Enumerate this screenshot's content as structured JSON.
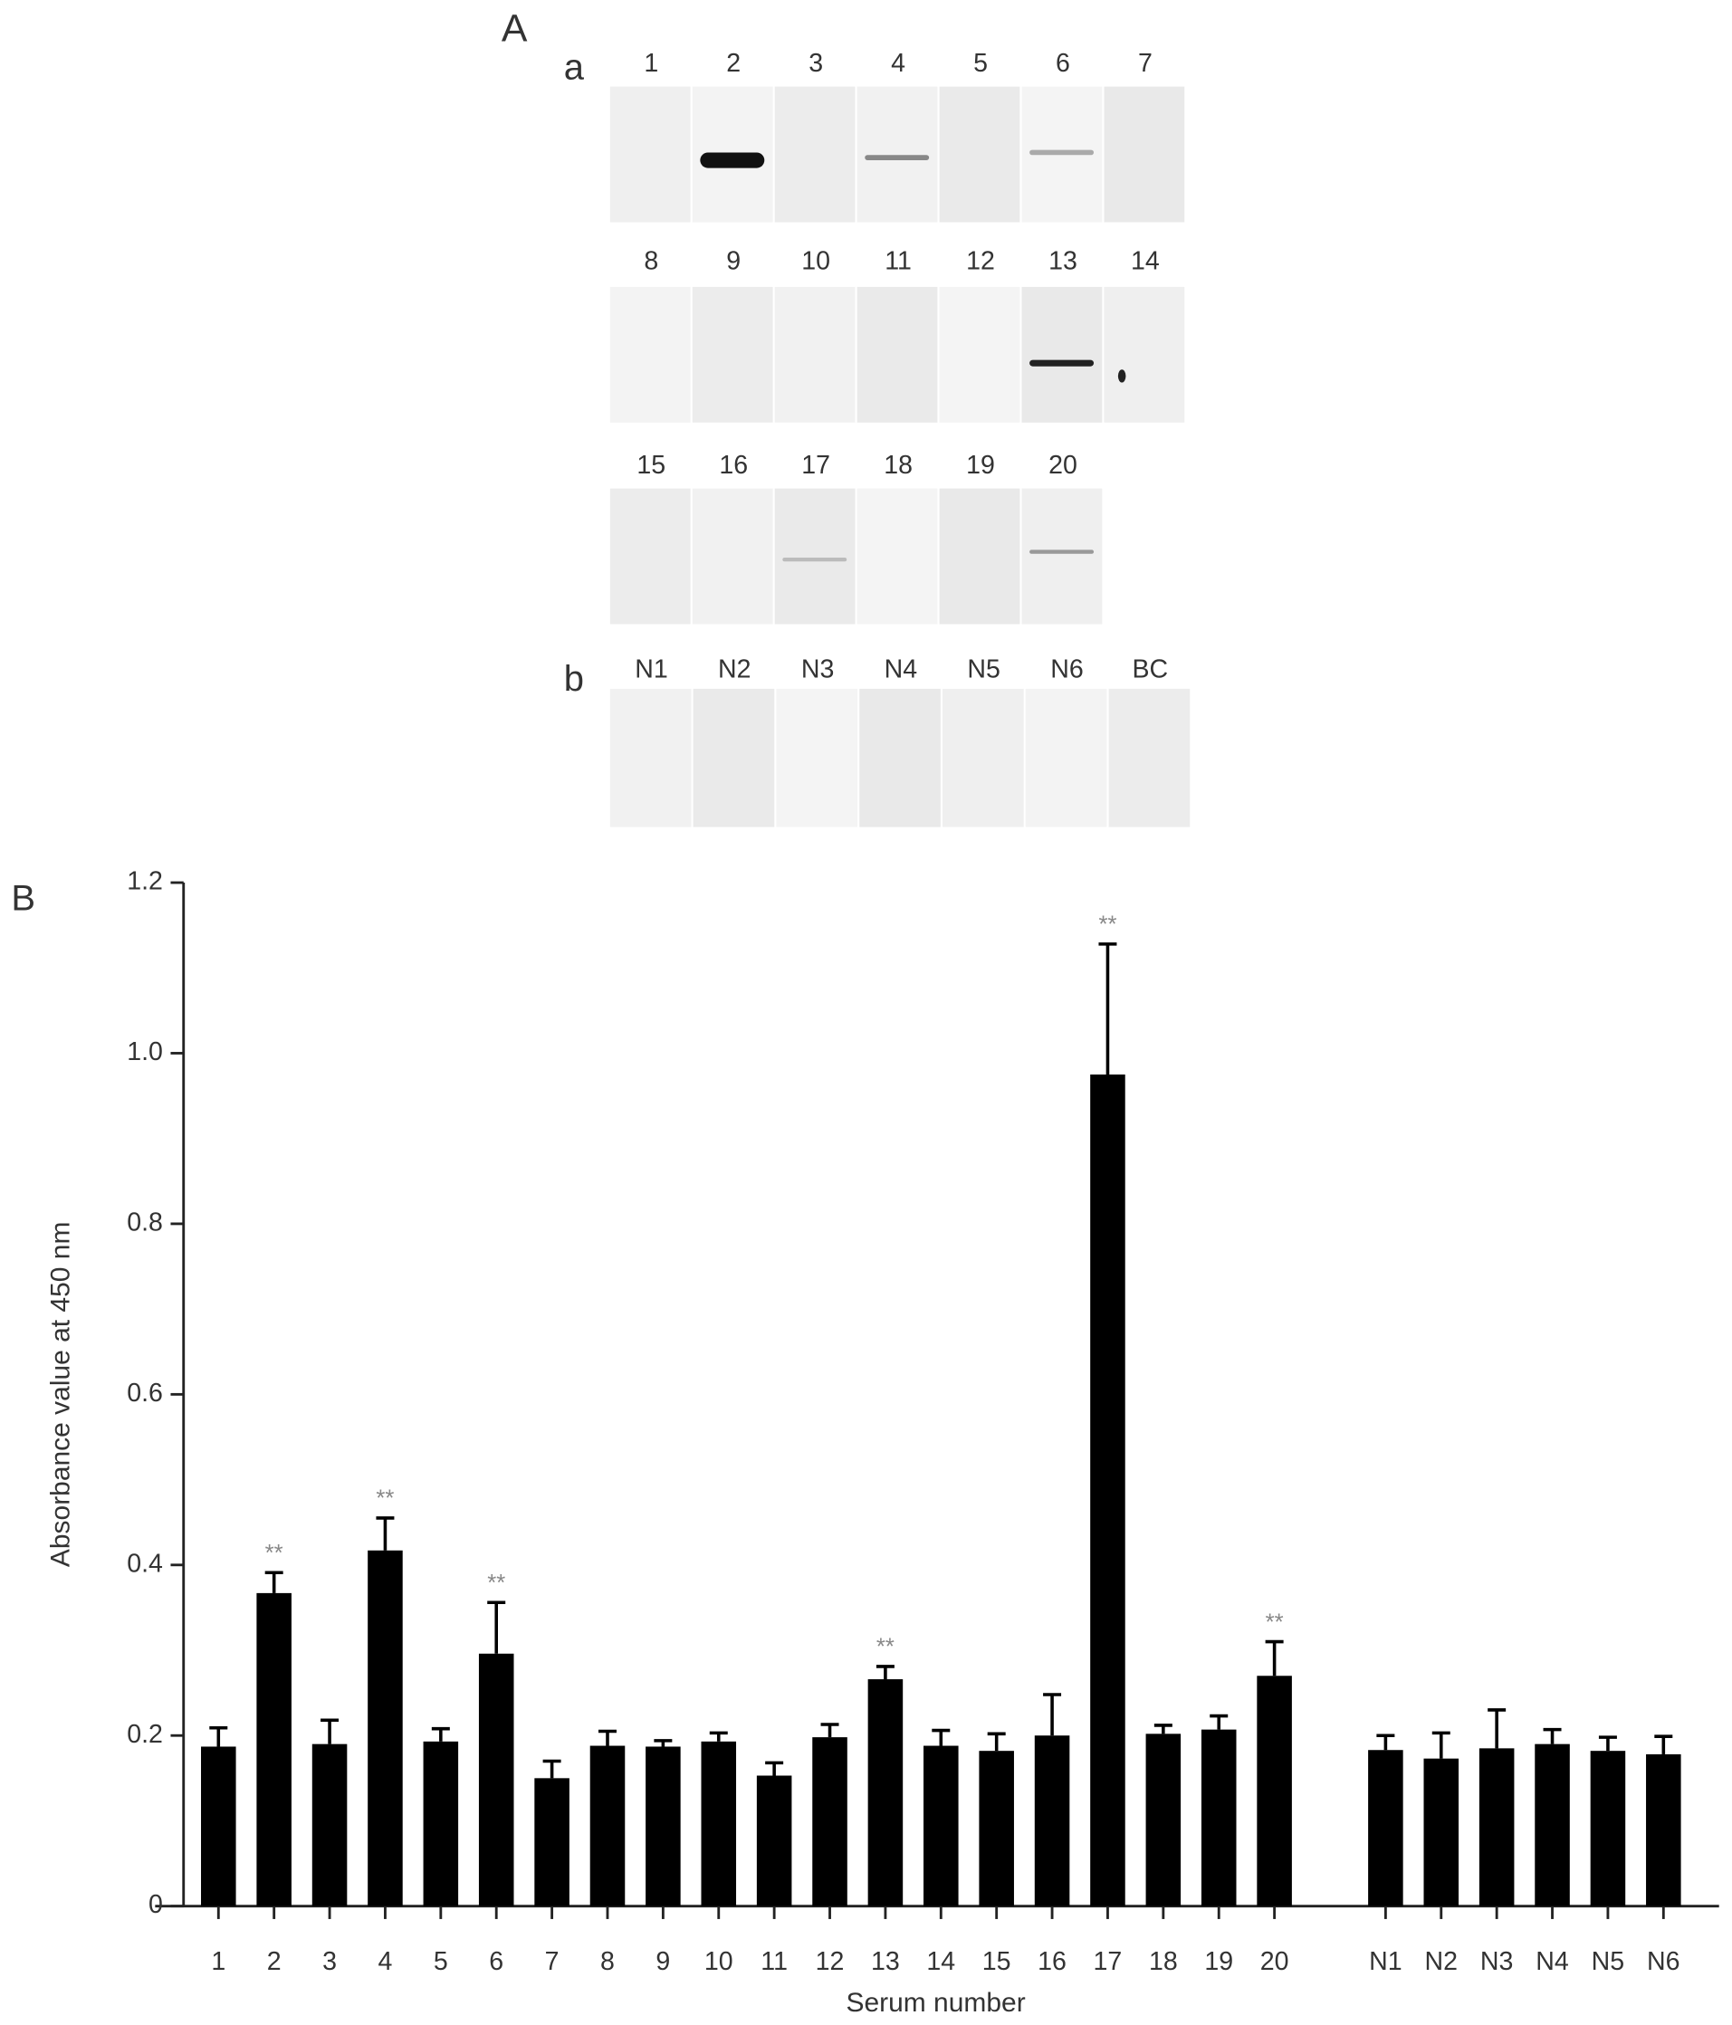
{
  "panel_a": {
    "label": "A",
    "sub_a": "a",
    "rows": [
      [
        "1",
        "2",
        "3",
        "4",
        "5",
        "6",
        "7"
      ],
      [
        "8",
        "9",
        "10",
        "11",
        "12",
        "13",
        "14"
      ],
      [
        "15",
        "16",
        "17",
        "18",
        "19",
        "20"
      ]
    ],
    "sub_b": "b",
    "controls": [
      "N1",
      "N2",
      "N3",
      "N4",
      "N5",
      "N6",
      "BC"
    ]
  },
  "panel_b_label": "B",
  "chart_data": {
    "type": "bar",
    "y_label": "Absorbance value at 450 nm",
    "x_label": "Serum number",
    "categories": [
      "1",
      "2",
      "3",
      "4",
      "5",
      "6",
      "7",
      "8",
      "9",
      "10",
      "11",
      "12",
      "13",
      "14",
      "15",
      "16",
      "17",
      "18",
      "19",
      "20",
      "N1",
      "N2",
      "N3",
      "N4",
      "N5",
      "N6"
    ],
    "values": [
      0.187,
      0.367,
      0.19,
      0.417,
      0.193,
      0.296,
      0.15,
      0.188,
      0.187,
      0.193,
      0.153,
      0.198,
      0.266,
      0.188,
      0.182,
      0.2,
      0.975,
      0.202,
      0.207,
      0.27,
      0.183,
      0.173,
      0.185,
      0.19,
      0.182,
      0.178
    ],
    "errors": [
      0.022,
      0.024,
      0.028,
      0.038,
      0.015,
      0.06,
      0.02,
      0.017,
      0.007,
      0.01,
      0.015,
      0.015,
      0.015,
      0.018,
      0.02,
      0.048,
      0.153,
      0.01,
      0.016,
      0.04,
      0.017,
      0.03,
      0.045,
      0.017,
      0.016,
      0.021
    ],
    "significance": [
      null,
      "**",
      null,
      "**",
      null,
      "**",
      null,
      null,
      null,
      null,
      null,
      null,
      "**",
      null,
      null,
      null,
      "**",
      null,
      null,
      "**",
      null,
      null,
      null,
      null,
      null,
      null
    ],
    "color": "#000000",
    "ylim": [
      0,
      1.2
    ],
    "yticks": [
      0,
      0.2,
      0.4,
      0.6,
      0.8,
      {
        "value": 1,
        "label": "1.0"
      },
      1.2
    ],
    "grid": false
  }
}
